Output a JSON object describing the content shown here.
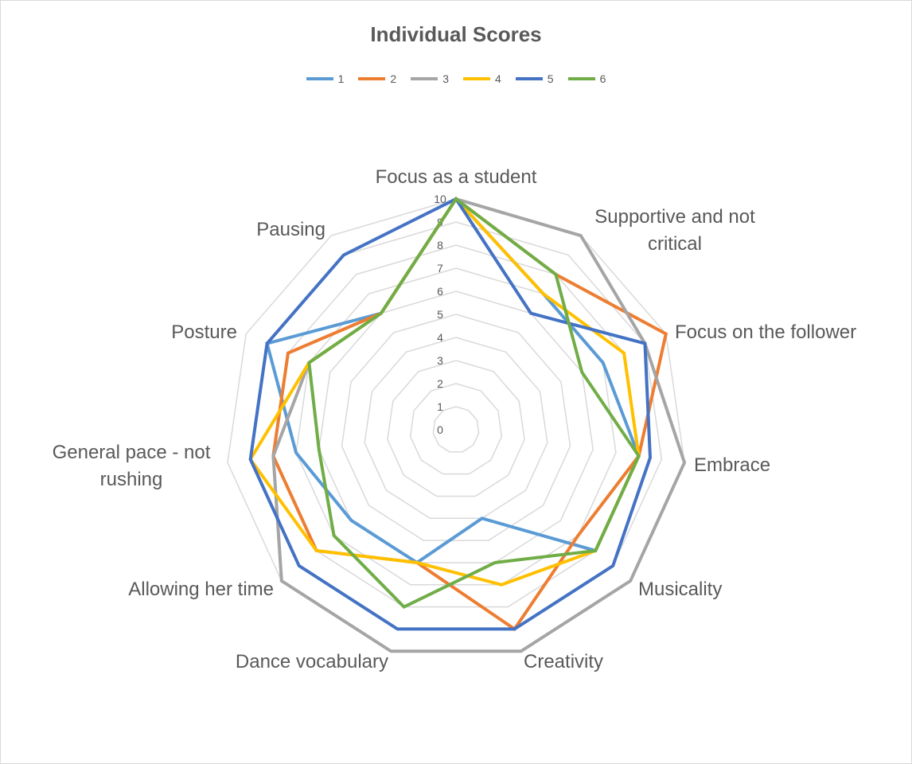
{
  "chart_data": {
    "type": "radar",
    "title": "Individual Scores",
    "categories": [
      "Focus as a student",
      "Supportive and not critical",
      "Focus on the follower",
      "Embrace",
      "Musicality",
      "Creativity",
      "Dance vocabulary",
      "Allowing her time",
      "General pace - not rushing",
      "Posture",
      "Pausing"
    ],
    "rlim": [
      0,
      10
    ],
    "ticks": [
      "0",
      "1",
      "2",
      "3",
      "4",
      "5",
      "6",
      "7",
      "8",
      "9",
      "10"
    ],
    "grid": true,
    "legend_position": "top",
    "series": [
      {
        "name": "1",
        "color": "#5B9BD5",
        "values": [
          10,
          7,
          7,
          8,
          8,
          4,
          6,
          6,
          7,
          9,
          6
        ]
      },
      {
        "name": "2",
        "color": "#ED7D31",
        "values": [
          10,
          8,
          10,
          8,
          7,
          9,
          6,
          8,
          8,
          8,
          6
        ]
      },
      {
        "name": "3",
        "color": "#A5A5A5",
        "values": [
          10,
          10,
          9,
          10,
          10,
          10,
          10,
          10,
          8,
          7,
          6
        ]
      },
      {
        "name": "4",
        "color": "#FFC000",
        "values": [
          10,
          7,
          8,
          8,
          8,
          7,
          6,
          8,
          9,
          7,
          6
        ]
      },
      {
        "name": "5",
        "color": "#4472C4",
        "values": [
          10,
          6,
          9,
          8.5,
          9,
          9,
          9,
          9,
          9,
          9,
          9
        ]
      },
      {
        "name": "6",
        "color": "#70AD47",
        "values": [
          10,
          8,
          6,
          8,
          8,
          6,
          8,
          7,
          6,
          7,
          6
        ]
      }
    ]
  }
}
